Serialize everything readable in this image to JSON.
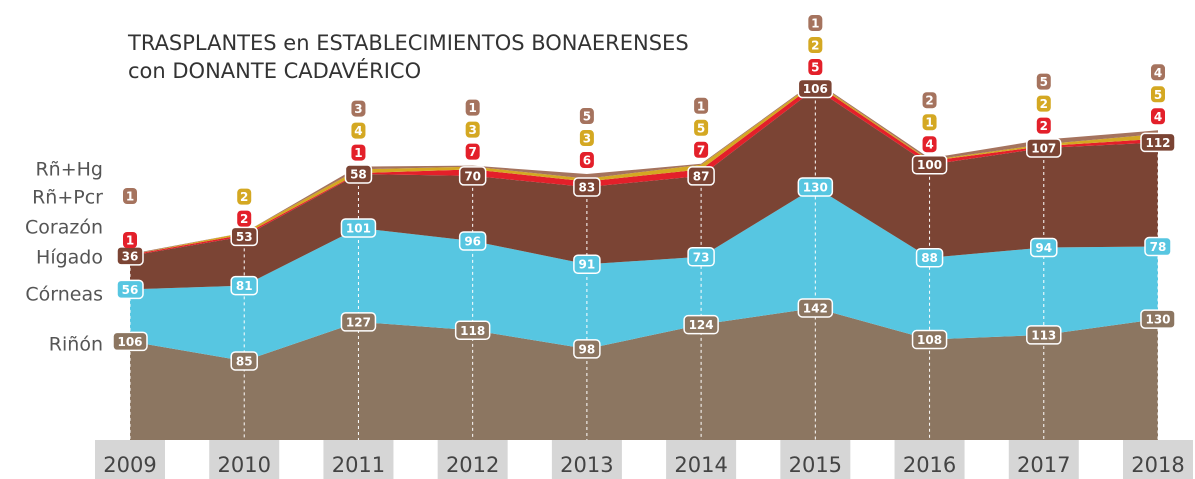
{
  "chart_data": {
    "type": "stacked_area",
    "title": "TRASPLANTES en ESTABLECIMIENTOS BONAERENSES",
    "subtitle": "con DONANTE CADAVÉRICO",
    "categories": [
      "2009",
      "2010",
      "2011",
      "2012",
      "2013",
      "2014",
      "2015",
      "2016",
      "2017",
      "2018"
    ],
    "series": [
      {
        "name": "Riñón",
        "color": "#8c7661",
        "values": [
          106,
          85,
          127,
          118,
          98,
          124,
          142,
          108,
          113,
          130
        ]
      },
      {
        "name": "Córneas",
        "color": "#57c6e1",
        "values": [
          56,
          81,
          101,
          96,
          91,
          73,
          130,
          88,
          94,
          78
        ]
      },
      {
        "name": "Hígado",
        "color": "#7b4434",
        "values": [
          36,
          53,
          58,
          70,
          83,
          87,
          106,
          100,
          107,
          112
        ]
      },
      {
        "name": "Corazón",
        "color": "#e3202a",
        "values": [
          1,
          2,
          1,
          7,
          6,
          7,
          5,
          4,
          2,
          4
        ]
      },
      {
        "name": "Rñ+Pcr",
        "color": "#d4a822",
        "values": [
          null,
          2,
          4,
          3,
          3,
          5,
          2,
          1,
          2,
          5
        ]
      },
      {
        "name": "Rñ+Hg",
        "color": "#a5735e",
        "values": [
          1,
          null,
          3,
          1,
          5,
          1,
          1,
          2,
          5,
          4
        ]
      }
    ]
  }
}
